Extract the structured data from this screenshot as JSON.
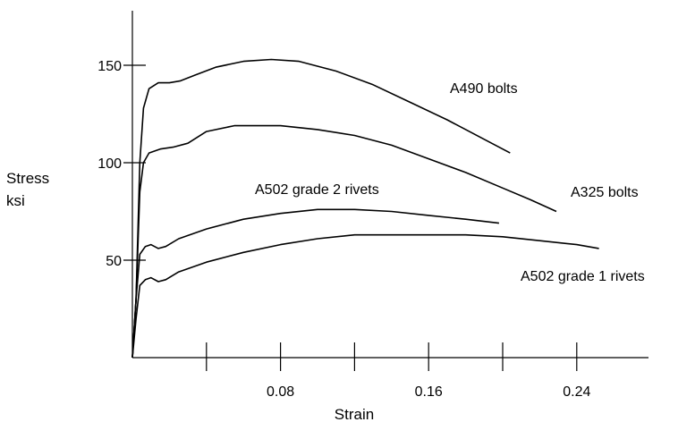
{
  "chart_data": {
    "type": "line",
    "title": "",
    "xlabel": "Strain",
    "ylabel": [
      "Stress",
      "ksi"
    ],
    "xlim": [
      0,
      0.28
    ],
    "ylim": [
      0,
      180
    ],
    "x_ticks": [
      0.04,
      0.08,
      0.12,
      0.16,
      0.2,
      0.24
    ],
    "x_tick_labels": [
      "0.08",
      "0.16",
      "0.24"
    ],
    "y_ticks": [
      50,
      100,
      150
    ],
    "y_tick_labels": [
      "50",
      "100",
      "150"
    ],
    "grid": false,
    "legend": "none",
    "line_color": "#000000",
    "series": [
      {
        "name": "A490 bolts",
        "points": [
          [
            0,
            0
          ],
          [
            0.002,
            30
          ],
          [
            0.004,
            100
          ],
          [
            0.006,
            128
          ],
          [
            0.009,
            138
          ],
          [
            0.014,
            141
          ],
          [
            0.02,
            141
          ],
          [
            0.026,
            142
          ],
          [
            0.034,
            145
          ],
          [
            0.045,
            149
          ],
          [
            0.06,
            152
          ],
          [
            0.075,
            153
          ],
          [
            0.09,
            152
          ],
          [
            0.11,
            147
          ],
          [
            0.13,
            140
          ],
          [
            0.15,
            131
          ],
          [
            0.17,
            122
          ],
          [
            0.19,
            112
          ],
          [
            0.204,
            105
          ]
        ]
      },
      {
        "name": "A325 bolts",
        "points": [
          [
            0,
            0
          ],
          [
            0.002,
            30
          ],
          [
            0.004,
            85
          ],
          [
            0.006,
            100
          ],
          [
            0.009,
            105
          ],
          [
            0.015,
            107
          ],
          [
            0.022,
            108
          ],
          [
            0.03,
            110
          ],
          [
            0.04,
            116
          ],
          [
            0.055,
            119
          ],
          [
            0.08,
            119
          ],
          [
            0.1,
            117
          ],
          [
            0.12,
            114
          ],
          [
            0.14,
            109
          ],
          [
            0.16,
            102
          ],
          [
            0.18,
            95
          ],
          [
            0.2,
            87
          ],
          [
            0.215,
            81
          ],
          [
            0.229,
            75
          ]
        ]
      },
      {
        "name": "A502 grade 2 rivets",
        "points": [
          [
            0,
            0
          ],
          [
            0.002,
            30
          ],
          [
            0.004,
            53
          ],
          [
            0.007,
            57
          ],
          [
            0.01,
            58
          ],
          [
            0.014,
            56
          ],
          [
            0.018,
            57
          ],
          [
            0.025,
            61
          ],
          [
            0.04,
            66
          ],
          [
            0.06,
            71
          ],
          [
            0.08,
            74
          ],
          [
            0.1,
            76
          ],
          [
            0.12,
            76
          ],
          [
            0.14,
            75
          ],
          [
            0.16,
            73
          ],
          [
            0.18,
            71
          ],
          [
            0.198,
            69
          ]
        ]
      },
      {
        "name": "A502 grade 1 rivets",
        "points": [
          [
            0,
            0
          ],
          [
            0.002,
            20
          ],
          [
            0.004,
            37
          ],
          [
            0.007,
            40
          ],
          [
            0.01,
            41
          ],
          [
            0.014,
            39
          ],
          [
            0.018,
            40
          ],
          [
            0.025,
            44
          ],
          [
            0.04,
            49
          ],
          [
            0.06,
            54
          ],
          [
            0.08,
            58
          ],
          [
            0.1,
            61
          ],
          [
            0.12,
            63
          ],
          [
            0.15,
            63
          ],
          [
            0.18,
            63
          ],
          [
            0.2,
            62
          ],
          [
            0.22,
            60
          ],
          [
            0.24,
            58
          ],
          [
            0.252,
            56
          ]
        ]
      }
    ]
  }
}
